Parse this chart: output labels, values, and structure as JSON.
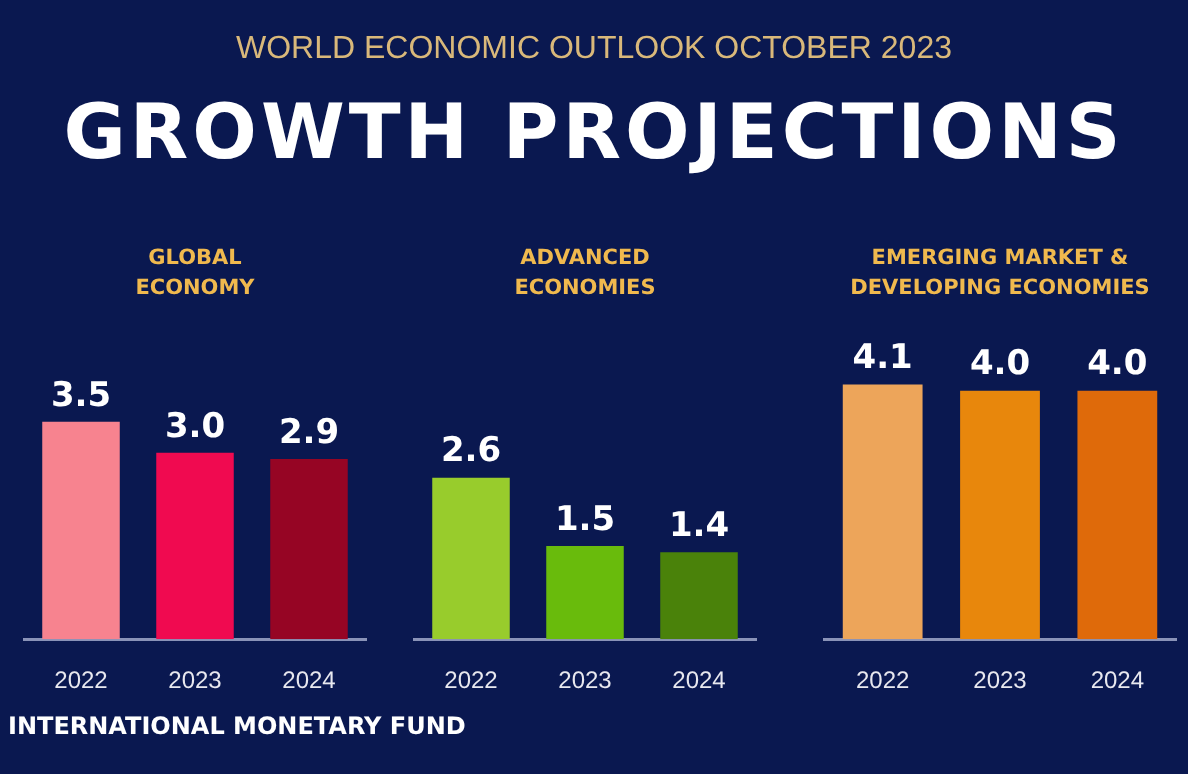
{
  "chart_data": [
    {
      "type": "other",
      "title": "GROWTH PROJECTIONS",
      "subtitle": "WORLD ECONOMIC OUTLOOK OCTOBER 2023",
      "annotations": [
        "INTERNATIONAL MONETARY FUND"
      ]
    },
    {
      "type": "bar",
      "title": "GLOBAL ECONOMY",
      "categories": [
        "2022",
        "2023",
        "2024"
      ],
      "values": [
        3.5,
        3.0,
        2.9
      ],
      "colors": [
        "#f7838f",
        "#f00a50",
        "#960524"
      ],
      "value_labels": [
        "3.5",
        "3.0",
        "2.9"
      ]
    },
    {
      "type": "bar",
      "title": "ADVANCED ECONOMIES",
      "categories": [
        "2022",
        "2023",
        "2024"
      ],
      "values": [
        2.6,
        1.5,
        1.4
      ],
      "colors": [
        "#98cc2c",
        "#69bb0c",
        "#4a820a"
      ],
      "value_labels": [
        "2.6",
        "1.5",
        "1.4"
      ]
    },
    {
      "type": "bar",
      "title": "EMERGING MARKET & DEVELOPING ECONOMIES",
      "categories": [
        "2022",
        "2023",
        "2024"
      ],
      "values": [
        4.1,
        4.0,
        4.0
      ],
      "colors": [
        "#eda55a",
        "#e8870c",
        "#df6a0a"
      ],
      "value_labels": [
        "4.1",
        "4.0",
        "4.0"
      ]
    }
  ]
}
